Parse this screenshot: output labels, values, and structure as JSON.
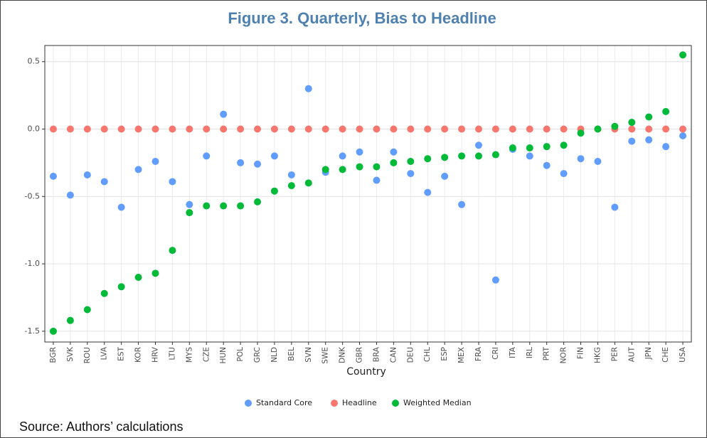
{
  "chart_data": {
    "type": "scatter",
    "title": "Figure 3. Quarterly, Bias to Headline",
    "x_label": "Country",
    "source": "Source: Authors’ calculations",
    "categories": [
      "BGR",
      "SVK",
      "ROU",
      "LVA",
      "EST",
      "KOR",
      "HRV",
      "LTU",
      "MYS",
      "CZE",
      "HUN",
      "POL",
      "GRC",
      "NLD",
      "BEL",
      "SVN",
      "SWE",
      "DNK",
      "GBR",
      "BRA",
      "CAN",
      "DEU",
      "CHL",
      "ESP",
      "MEX",
      "FRA",
      "CRI",
      "ITA",
      "IRL",
      "PRT",
      "NOR",
      "FIN",
      "HKG",
      "PER",
      "AUT",
      "JPN",
      "CHE",
      "USA"
    ],
    "series": [
      {
        "name": "Standard Core",
        "color": "#619CFF",
        "values": [
          -0.35,
          -0.49,
          -0.34,
          -0.39,
          -0.58,
          -0.3,
          -0.24,
          -0.39,
          -0.56,
          -0.2,
          0.11,
          -0.25,
          -0.26,
          -0.2,
          -0.34,
          0.3,
          -0.32,
          -0.2,
          -0.17,
          -0.38,
          -0.17,
          -0.33,
          -0.47,
          -0.35,
          -0.56,
          -0.12,
          -1.12,
          -0.15,
          -0.2,
          -0.27,
          -0.33,
          -0.22,
          -0.24,
          -0.58,
          -0.09,
          -0.08,
          -0.13,
          -0.05
        ]
      },
      {
        "name": "Headline",
        "color": "#F8766D",
        "values": [
          0,
          0,
          0,
          0,
          0,
          0,
          0,
          0,
          0,
          0,
          0,
          0,
          0,
          0,
          0,
          0,
          0,
          0,
          0,
          0,
          0,
          0,
          0,
          0,
          0,
          0,
          0,
          0,
          0,
          0,
          0,
          0,
          0,
          0,
          0,
          0,
          0,
          0
        ]
      },
      {
        "name": "Weighted Median",
        "color": "#00BA38",
        "values": [
          -1.5,
          -1.42,
          -1.34,
          -1.22,
          -1.17,
          -1.1,
          -1.07,
          -0.9,
          -0.62,
          -0.57,
          -0.57,
          -0.57,
          -0.54,
          -0.46,
          -0.42,
          -0.4,
          -0.3,
          -0.3,
          -0.28,
          -0.28,
          -0.25,
          -0.24,
          -0.22,
          -0.21,
          -0.2,
          -0.2,
          -0.19,
          -0.14,
          -0.14,
          -0.13,
          -0.12,
          -0.03,
          0.0,
          0.02,
          0.05,
          0.09,
          0.13,
          0.55
        ]
      }
    ],
    "ylim": [
      -1.58,
      0.62
    ],
    "yticks": [
      -1.5,
      {
        "value": -1,
        "label": "-1.0"
      },
      -0.5,
      {
        "value": 0,
        "label": "0.0"
      },
      0.5
    ],
    "grid": true,
    "legend": "bottom"
  }
}
